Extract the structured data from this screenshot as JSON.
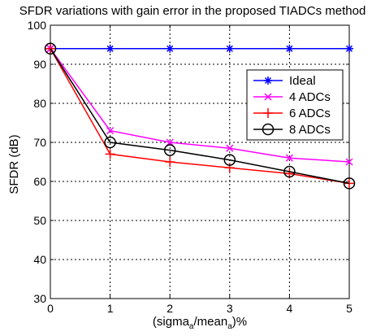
{
  "chart_data": {
    "type": "line",
    "title": "SFDR  variations with gain error in the proposed TIADCs method",
    "xlabel_parts": [
      "(sigma",
      "a",
      "/mean",
      "a",
      ")%"
    ],
    "ylabel": "SFDR (dB)",
    "xlim": [
      0,
      5
    ],
    "ylim": [
      30,
      100
    ],
    "xticks": [
      0,
      1,
      2,
      3,
      4,
      5
    ],
    "yticks": [
      30,
      40,
      50,
      60,
      70,
      80,
      90,
      100
    ],
    "grid": "dotted",
    "legend_position": "top-right",
    "series": [
      {
        "name": "Ideal",
        "color": "#0000ff",
        "marker": "asterisk",
        "x": [
          0,
          1,
          2,
          3,
          4,
          5
        ],
        "y": [
          94,
          94,
          94,
          94,
          94,
          94
        ]
      },
      {
        "name": "4 ADCs",
        "color": "#ff00ff",
        "marker": "x",
        "x": [
          0,
          1,
          2,
          3,
          4,
          5
        ],
        "y": [
          94,
          73,
          70,
          68.5,
          66,
          65
        ]
      },
      {
        "name": "6 ADCs",
        "color": "#ff0000",
        "marker": "plus",
        "x": [
          0,
          1,
          2,
          3,
          4,
          5
        ],
        "y": [
          94,
          67,
          65,
          63.5,
          62,
          59.5
        ]
      },
      {
        "name": "8 ADCs",
        "color": "#000000",
        "marker": "circle",
        "x": [
          0,
          1,
          2,
          3,
          4,
          5
        ],
        "y": [
          94,
          70,
          68,
          65.5,
          62.5,
          59.5
        ]
      }
    ]
  }
}
